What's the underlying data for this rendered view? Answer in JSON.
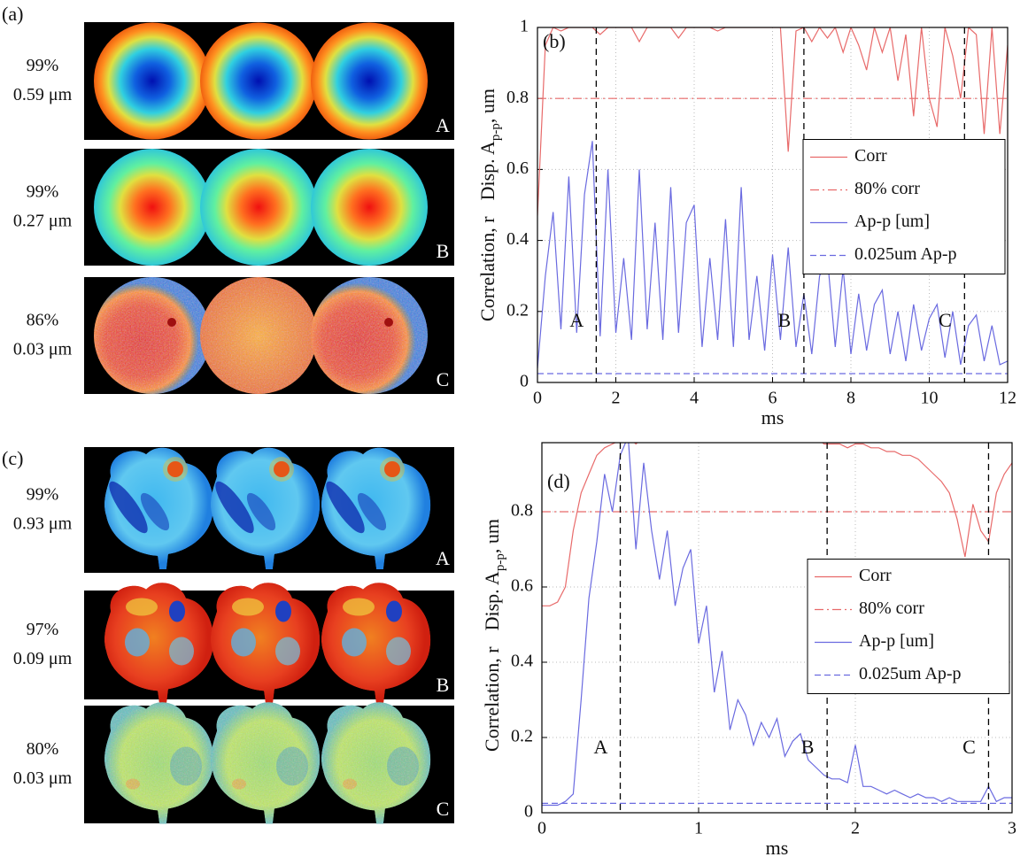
{
  "panels": {
    "a": {
      "label": "(a)",
      "rows": [
        {
          "corr": "99%",
          "disp": "0.59 μm",
          "tag": "A"
        },
        {
          "corr": "99%",
          "disp": "0.27 μm",
          "tag": "B"
        },
        {
          "corr": "86%",
          "disp": "0.03 μm",
          "tag": "C"
        }
      ]
    },
    "c": {
      "label": "(c)",
      "rows": [
        {
          "corr": "99%",
          "disp": "0.93 μm",
          "tag": "A"
        },
        {
          "corr": "97%",
          "disp": "0.09 μm",
          "tag": "B"
        },
        {
          "corr": "80%",
          "disp": "0.03 μm",
          "tag": "C"
        }
      ]
    }
  },
  "chart_data": [
    {
      "type": "line",
      "label": "(b)",
      "xlabel": "ms",
      "ylabel": [
        "Correlation, r",
        "Disp. A",
        "p-p",
        ", um"
      ],
      "x": [
        0,
        0.2,
        0.4,
        0.6,
        0.8,
        1,
        1.2,
        1.4,
        1.6,
        1.8,
        2,
        2.2,
        2.4,
        2.6,
        2.8,
        3,
        3.2,
        3.4,
        3.6,
        3.8,
        4,
        4.2,
        4.4,
        4.6,
        4.8,
        5,
        5.2,
        5.4,
        5.6,
        5.8,
        6,
        6.2,
        6.4,
        6.6,
        6.8,
        7,
        7.2,
        7.4,
        7.6,
        7.8,
        8,
        8.2,
        8.4,
        8.6,
        8.8,
        9,
        9.2,
        9.4,
        9.6,
        9.8,
        10,
        10.2,
        10.4,
        10.6,
        10.8,
        11,
        11.2,
        11.4,
        11.6,
        11.8,
        12
      ],
      "xlim": [
        0,
        12
      ],
      "ylim": [
        0,
        1
      ],
      "xticks": [
        0,
        2,
        4,
        6,
        8,
        10,
        12
      ],
      "yticks": [
        0,
        0.2,
        0.4,
        0.6,
        0.8,
        1
      ],
      "grid": true,
      "legend": "center right",
      "series": [
        {
          "name": "Corr",
          "color": "#e86a6a",
          "style": "solid",
          "values": [
            0.47,
            0.95,
            1,
            0.99,
            1,
            1,
            1,
            1,
            0.98,
            1,
            1,
            1,
            1,
            0.96,
            1,
            1,
            1,
            1,
            0.97,
            1,
            1,
            1,
            1,
            0.99,
            1,
            1,
            1,
            1,
            1,
            1,
            1,
            1,
            0.65,
            0.99,
            1,
            0.96,
            1,
            0.97,
            1,
            0.93,
            1,
            0.95,
            0.88,
            1,
            0.93,
            1,
            0.85,
            0.98,
            0.75,
            1,
            0.8,
            0.72,
            1,
            0.92,
            0.8,
            1,
            0.98,
            0.7,
            1,
            0.7,
            0.95
          ]
        },
        {
          "name": "80% corr",
          "color": "#e86a6a",
          "style": "dashdot",
          "x": [
            0,
            12
          ],
          "values": [
            0.8,
            0.8
          ]
        },
        {
          "name": "Ap-p [um]",
          "color": "#6a6ae0",
          "style": "solid",
          "values": [
            0.04,
            0.3,
            0.48,
            0.15,
            0.58,
            0.14,
            0.53,
            0.68,
            0.13,
            0.6,
            0.14,
            0.35,
            0.12,
            0.6,
            0.15,
            0.45,
            0.12,
            0.55,
            0.14,
            0.45,
            0.5,
            0.1,
            0.35,
            0.12,
            0.46,
            0.1,
            0.55,
            0.12,
            0.3,
            0.09,
            0.36,
            0.12,
            0.38,
            0.1,
            0.25,
            0.08,
            0.3,
            0.35,
            0.1,
            0.32,
            0.08,
            0.25,
            0.09,
            0.22,
            0.26,
            0.08,
            0.2,
            0.06,
            0.22,
            0.09,
            0.18,
            0.22,
            0.07,
            0.2,
            0.05,
            0.16,
            0.19,
            0.06,
            0.16,
            0.05,
            0.06
          ]
        },
        {
          "name": "0.025um Ap-p",
          "color": "#6a6ae0",
          "style": "dashed",
          "x": [
            0,
            12
          ],
          "values": [
            0.025,
            0.025
          ]
        }
      ],
      "markers": [
        {
          "x": 1.5,
          "label": "A"
        },
        {
          "x": 6.8,
          "label": "B"
        },
        {
          "x": 10.9,
          "label": "C"
        }
      ]
    },
    {
      "type": "line",
      "label": "(d)",
      "xlabel": "ms",
      "ylabel": [
        "Correlation, r",
        "Disp. A",
        "p-p",
        ", um"
      ],
      "x": [
        0,
        0.05,
        0.1,
        0.15,
        0.2,
        0.25,
        0.3,
        0.35,
        0.4,
        0.45,
        0.5,
        0.55,
        0.6,
        0.65,
        0.7,
        0.75,
        0.8,
        0.85,
        0.9,
        0.95,
        1,
        1.05,
        1.1,
        1.15,
        1.2,
        1.25,
        1.3,
        1.35,
        1.4,
        1.45,
        1.5,
        1.55,
        1.6,
        1.65,
        1.7,
        1.75,
        1.8,
        1.85,
        1.9,
        1.95,
        2,
        2.05,
        2.1,
        2.15,
        2.2,
        2.25,
        2.3,
        2.35,
        2.4,
        2.45,
        2.5,
        2.55,
        2.6,
        2.65,
        2.7,
        2.75,
        2.8,
        2.85,
        2.9,
        2.95,
        3
      ],
      "xlim": [
        0,
        3
      ],
      "ylim": [
        0,
        1
      ],
      "xticks": [
        0,
        1,
        2,
        3
      ],
      "yticks": [
        0,
        0.2,
        0.4,
        0.6,
        0.8
      ],
      "grid": true,
      "legend": "center right",
      "series": [
        {
          "name": "Corr",
          "color": "#e86a6a",
          "style": "solid",
          "values": [
            0.55,
            0.55,
            0.56,
            0.6,
            0.75,
            0.85,
            0.9,
            0.95,
            0.97,
            0.98,
            0.99,
            1,
            0.98,
            1,
            1,
            1,
            1,
            1,
            1,
            1,
            1,
            1,
            1,
            1,
            1,
            1,
            1,
            1,
            1,
            1,
            1,
            1,
            1,
            1,
            1,
            1,
            0.98,
            0.98,
            0.98,
            0.97,
            0.98,
            0.98,
            0.97,
            0.97,
            0.96,
            0.96,
            0.95,
            0.95,
            0.94,
            0.92,
            0.9,
            0.88,
            0.85,
            0.78,
            0.68,
            0.82,
            0.75,
            0.72,
            0.85,
            0.9,
            0.93
          ]
        },
        {
          "name": "80% corr",
          "color": "#e86a6a",
          "style": "dashdot",
          "x": [
            0,
            3
          ],
          "values": [
            0.8,
            0.8
          ]
        },
        {
          "name": "Ap-p [um]",
          "color": "#6a6ae0",
          "style": "solid",
          "values": [
            0.02,
            0.02,
            0.02,
            0.03,
            0.05,
            0.3,
            0.57,
            0.72,
            0.9,
            0.8,
            0.95,
            1,
            0.7,
            0.93,
            0.75,
            0.62,
            0.75,
            0.55,
            0.65,
            0.7,
            0.45,
            0.55,
            0.32,
            0.43,
            0.22,
            0.3,
            0.26,
            0.18,
            0.24,
            0.2,
            0.25,
            0.15,
            0.19,
            0.21,
            0.14,
            0.12,
            0.1,
            0.09,
            0.09,
            0.08,
            0.18,
            0.07,
            0.07,
            0.06,
            0.05,
            0.06,
            0.05,
            0.04,
            0.05,
            0.04,
            0.04,
            0.03,
            0.04,
            0.03,
            0.03,
            0.03,
            0.03,
            0.07,
            0.03,
            0.04,
            0.04
          ]
        },
        {
          "name": "0.025um Ap-p",
          "color": "#6a6ae0",
          "style": "dashed",
          "x": [
            0,
            3
          ],
          "values": [
            0.025,
            0.025
          ]
        }
      ],
      "markers": [
        {
          "x": 0.5,
          "label": "A"
        },
        {
          "x": 1.82,
          "label": "B"
        },
        {
          "x": 2.85,
          "label": "C"
        }
      ]
    }
  ]
}
